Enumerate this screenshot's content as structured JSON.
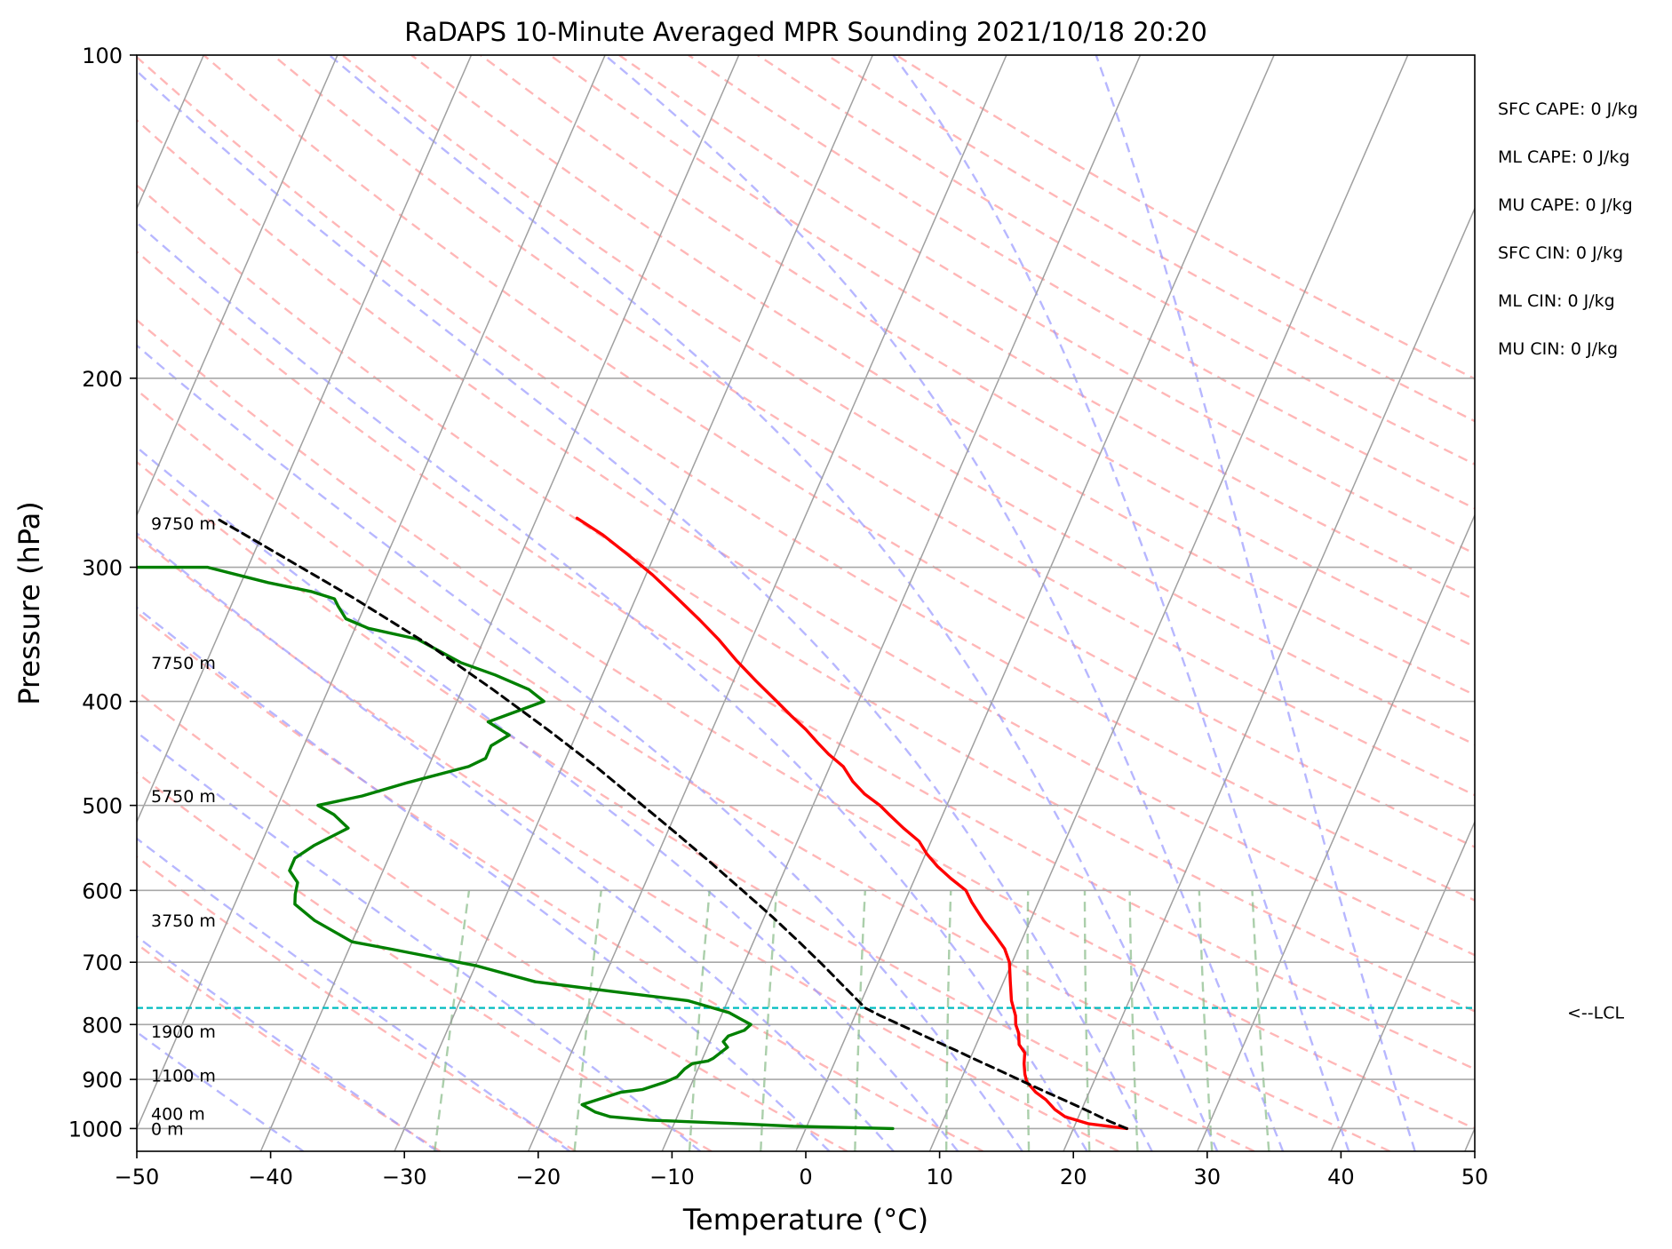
{
  "chart_data": {
    "type": "line",
    "title": "RaDAPS 10-Minute Averaged MPR Sounding 2021/10/18 20:20",
    "xlabel": "Temperature (°C)",
    "ylabel": "Pressure (hPa)",
    "xlim": [
      -50,
      50
    ],
    "ylim": [
      1050,
      100
    ],
    "y_scale": "log",
    "grid": true,
    "x_ticks": [
      -50,
      -40,
      -30,
      -20,
      -10,
      0,
      10,
      20,
      30,
      40,
      50
    ],
    "x_tick_labels": [
      "−50",
      "−40",
      "−30",
      "−20",
      "−10",
      "0",
      "10",
      "20",
      "30",
      "40",
      "50"
    ],
    "y_ticks": [
      100,
      200,
      300,
      400,
      500,
      600,
      700,
      800,
      900,
      1000
    ],
    "y_tick_labels": [
      "100",
      "200",
      "300",
      "400",
      "500",
      "600",
      "700",
      "800",
      "900",
      "1000"
    ],
    "skew": 35,
    "dry_adiabats_theta_c": [
      -30,
      -20,
      -10,
      0,
      10,
      20,
      30,
      40,
      50,
      60,
      70,
      80,
      90,
      100,
      110,
      120,
      130,
      140,
      150,
      160,
      170,
      180,
      190,
      200
    ],
    "moist_adiabats_start_c": [
      -40,
      -30,
      -20,
      -10,
      0,
      5,
      10,
      15,
      20,
      25,
      30,
      35,
      40,
      45
    ],
    "mixing_ratio_lines_gkg": [
      0.4,
      1,
      2,
      3,
      5,
      8,
      12,
      16,
      20,
      28,
      36
    ],
    "series": [
      {
        "key": "temperature",
        "color": "#ff0000",
        "points": [
          [
            24,
            1000
          ],
          [
            21,
            990
          ],
          [
            19,
            975
          ],
          [
            18,
            960
          ],
          [
            17,
            940
          ],
          [
            16,
            925
          ],
          [
            15,
            905
          ],
          [
            14.6,
            890
          ],
          [
            14.2,
            870
          ],
          [
            13.9,
            850
          ],
          [
            13.2,
            835
          ],
          [
            12.8,
            815
          ],
          [
            12.3,
            800
          ],
          [
            12,
            785
          ],
          [
            11.2,
            760
          ],
          [
            10.5,
            730
          ],
          [
            9.8,
            700
          ],
          [
            9,
            680
          ],
          [
            7.8,
            660
          ],
          [
            6.5,
            640
          ],
          [
            5,
            615
          ],
          [
            4.2,
            600
          ],
          [
            2.7,
            585
          ],
          [
            1.3,
            570
          ],
          [
            0.1,
            555
          ],
          [
            -0.9,
            540
          ],
          [
            -2.5,
            525
          ],
          [
            -4,
            510
          ],
          [
            -5,
            500
          ],
          [
            -6.5,
            488
          ],
          [
            -7.8,
            475
          ],
          [
            -9,
            460
          ],
          [
            -10.5,
            448
          ],
          [
            -11.7,
            437
          ],
          [
            -13,
            425
          ],
          [
            -14.5,
            413
          ],
          [
            -16.1,
            400
          ],
          [
            -18.3,
            383
          ],
          [
            -20.5,
            366
          ],
          [
            -22.5,
            350
          ],
          [
            -24.5,
            336
          ],
          [
            -27,
            320
          ],
          [
            -29.5,
            305
          ],
          [
            -32,
            292
          ],
          [
            -34.5,
            280
          ],
          [
            -37,
            270
          ]
        ]
      },
      {
        "key": "dewpoint",
        "color": "#008000",
        "points": [
          [
            6.5,
            1000
          ],
          [
            -1,
            995
          ],
          [
            -5,
            990
          ],
          [
            -12,
            982
          ],
          [
            -15,
            975
          ],
          [
            -16.3,
            965
          ],
          [
            -17.5,
            950
          ],
          [
            -16,
            935
          ],
          [
            -15,
            925
          ],
          [
            -13.5,
            920
          ],
          [
            -12,
            905
          ],
          [
            -11.3,
            895
          ],
          [
            -11,
            880
          ],
          [
            -10.6,
            870
          ],
          [
            -9.5,
            865
          ],
          [
            -9.2,
            860
          ],
          [
            -8.5,
            840
          ],
          [
            -9,
            830
          ],
          [
            -8.8,
            820
          ],
          [
            -7.8,
            810
          ],
          [
            -7.5,
            800
          ],
          [
            -8.5,
            790
          ],
          [
            -9.5,
            780
          ],
          [
            -13,
            760
          ],
          [
            -19,
            745
          ],
          [
            -25,
            730
          ],
          [
            -30,
            705
          ],
          [
            -37,
            680
          ],
          [
            -40,
            670
          ],
          [
            -43.5,
            640
          ],
          [
            -45.5,
            618
          ],
          [
            -45.8,
            605
          ],
          [
            -46,
            590
          ],
          [
            -47,
            575
          ],
          [
            -47,
            560
          ],
          [
            -46,
            545
          ],
          [
            -44,
            525
          ],
          [
            -45.5,
            510
          ],
          [
            -47,
            500
          ],
          [
            -44,
            490
          ],
          [
            -41,
            476
          ],
          [
            -37,
            460
          ],
          [
            -36,
            452
          ],
          [
            -36,
            440
          ],
          [
            -35,
            430
          ],
          [
            -37,
            418
          ],
          [
            -33.5,
            400
          ],
          [
            -35,
            390
          ],
          [
            -38,
            378
          ],
          [
            -41,
            368
          ],
          [
            -45,
            350
          ],
          [
            -49,
            342
          ],
          [
            -51,
            335
          ],
          [
            -52,
            326
          ],
          [
            -52.5,
            321
          ],
          [
            -54.5,
            316
          ],
          [
            -58,
            310
          ],
          [
            -63,
            300
          ],
          [
            -70,
            300
          ],
          [
            -85,
            300
          ]
        ]
      },
      {
        "key": "parcel",
        "color": "#000000",
        "points": [
          [
            24,
            1000
          ],
          [
            22.5,
            985
          ],
          [
            20.7,
            965
          ],
          [
            18.8,
            945
          ],
          [
            16.8,
            925
          ],
          [
            14.8,
            905
          ],
          [
            12.8,
            885
          ],
          [
            10.7,
            865
          ],
          [
            8.6,
            845
          ],
          [
            6.4,
            825
          ],
          [
            4.2,
            805
          ],
          [
            1.9,
            785
          ],
          [
            0.5,
            772
          ],
          [
            -1.6,
            740
          ],
          [
            -4,
            705
          ],
          [
            -6.6,
            670
          ],
          [
            -9.4,
            635
          ],
          [
            -12.5,
            600
          ],
          [
            -15.8,
            565
          ],
          [
            -19.4,
            530
          ],
          [
            -23.3,
            495
          ],
          [
            -27.5,
            460
          ],
          [
            -32.3,
            425
          ],
          [
            -37.7,
            390
          ],
          [
            -43.8,
            355
          ],
          [
            -51.2,
            320
          ],
          [
            -59.9,
            285
          ],
          [
            -63.7,
            271
          ]
        ]
      }
    ],
    "lcl": {
      "pressure_hpa": 772,
      "label": "<--LCL"
    },
    "height_labels": [
      {
        "pressure_hpa": 273,
        "text": "9750 m"
      },
      {
        "pressure_hpa": 368,
        "text": "7750 m"
      },
      {
        "pressure_hpa": 490,
        "text": "5750 m"
      },
      {
        "pressure_hpa": 640,
        "text": "3750 m"
      },
      {
        "pressure_hpa": 812,
        "text": "1900 m"
      },
      {
        "pressure_hpa": 892,
        "text": "1100 m"
      },
      {
        "pressure_hpa": 968,
        "text": "400 m"
      },
      {
        "pressure_hpa": 1000,
        "text": "0 m"
      }
    ],
    "indices": [
      "SFC CAPE: 0 J/kg",
      "ML CAPE: 0 J/kg",
      "MU CAPE: 0 J/kg",
      "SFC CIN: 0 J/kg",
      "ML CIN: 0 J/kg",
      "MU CIN: 0 J/kg"
    ],
    "colors": {
      "dry_adiabat": "#ff9999",
      "moist_adiabat": "#9999ff",
      "mixing_ratio": "#88bb88",
      "isotherm": "#a0a0a0",
      "isobar": "#a8a8a8",
      "lcl_line": "#00bcc0"
    }
  }
}
